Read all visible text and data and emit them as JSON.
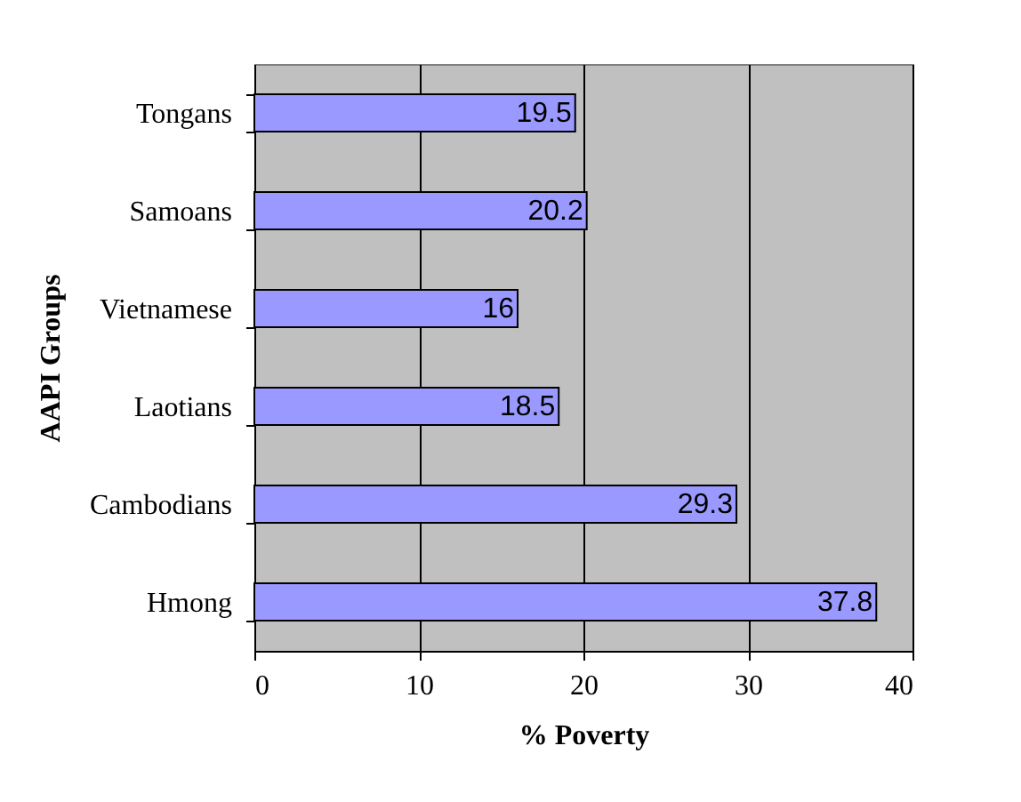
{
  "chart_data": {
    "type": "bar",
    "orientation": "horizontal",
    "xlabel": "% Poverty",
    "ylabel": "AAPI Groups",
    "categories": [
      "Tongans",
      "Samoans",
      "Vietnamese",
      "Laotians",
      "Cambodians",
      "Hmong"
    ],
    "values": [
      19.5,
      20.2,
      16,
      18.5,
      29.3,
      37.8
    ],
    "color": "#9999ff",
    "xlim": [
      0,
      40
    ],
    "xticks": [
      0,
      10,
      20,
      30,
      40
    ],
    "grid": "x",
    "data_labels": true
  }
}
